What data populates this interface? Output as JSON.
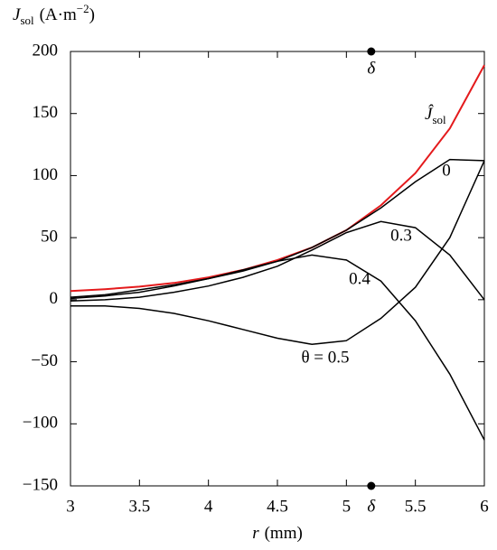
{
  "chart_data": {
    "type": "line",
    "ylabel": [
      "J",
      "sol",
      "(A·m",
      "−2",
      ")"
    ],
    "xlabel": [
      "r",
      "(mm)"
    ],
    "x": [
      3,
      3.25,
      3.5,
      3.75,
      4,
      4.25,
      4.5,
      4.75,
      5,
      5.25,
      5.5,
      5.75,
      6
    ],
    "series": [
      {
        "name": [
          "Ĵ",
          "sol"
        ],
        "color": "#e41a1c",
        "values": [
          7,
          8.5,
          10.5,
          13.5,
          18,
          24,
          32,
          42,
          56,
          76,
          102,
          138,
          189
        ]
      },
      {
        "name": "0",
        "color": "#000000",
        "values": [
          2,
          4,
          8,
          12,
          17,
          23,
          31,
          42,
          56,
          74,
          95,
          113,
          112
        ]
      },
      {
        "name": "0.3",
        "color": "#000000",
        "values": [
          -1,
          0,
          2,
          6,
          11,
          18,
          27,
          40,
          54,
          63,
          58,
          36,
          0
        ]
      },
      {
        "name": "0.4",
        "color": "#000000",
        "values": [
          1,
          3,
          6,
          11,
          17,
          24,
          31,
          36,
          32,
          15,
          -17,
          -60,
          -113
        ]
      },
      {
        "name": "θ = 0.5",
        "color": "#000000",
        "values": [
          -5,
          -5,
          -7,
          -11,
          -17,
          -24,
          -31,
          -36,
          -33,
          -15,
          10,
          50,
          112
        ]
      }
    ],
    "delta": {
      "x": 5.18,
      "label": "δ"
    },
    "xlim": [
      3,
      6
    ],
    "ylim": [
      -150,
      200
    ],
    "xticks": [
      3,
      3.5,
      4,
      4.5,
      5,
      5.5,
      6
    ],
    "yticks": [
      {
        "value": -150,
        "label": "−150"
      },
      {
        "value": -100,
        "label": "−100"
      },
      {
        "value": -50,
        "label": "−50"
      },
      0,
      50,
      100,
      150,
      200
    ]
  }
}
